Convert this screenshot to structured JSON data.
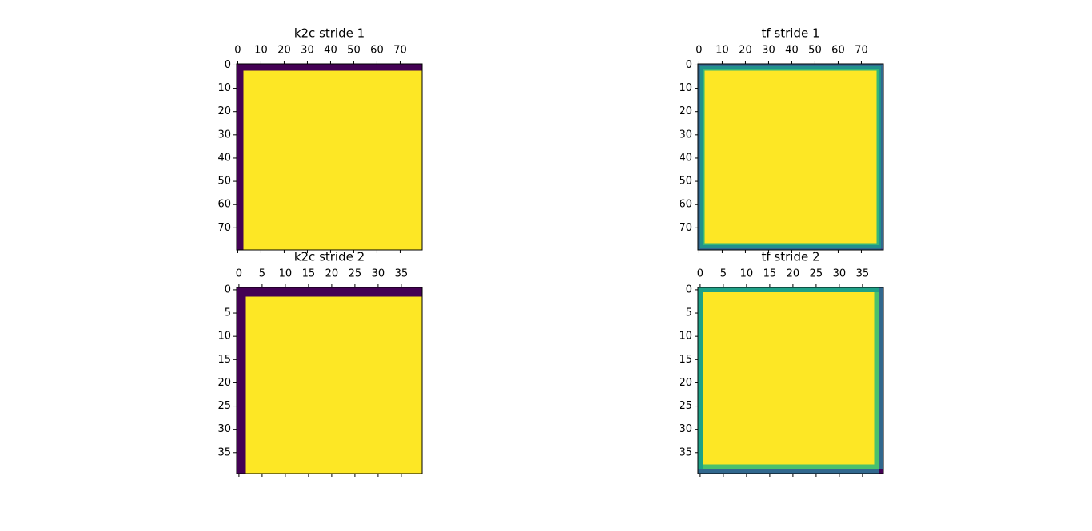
{
  "chart_data": [
    {
      "type": "image",
      "title": "k2c stride 1",
      "xlim": [
        -0.5,
        79.5
      ],
      "ylim": [
        79.5,
        -0.5
      ],
      "xticks": [
        0,
        10,
        20,
        30,
        40,
        50,
        60,
        70
      ],
      "yticks": [
        0,
        10,
        20,
        30,
        40,
        50,
        60,
        70
      ],
      "regions": [
        {
          "x": [
            -0.5,
            79.5
          ],
          "y": [
            -0.5,
            79.5
          ],
          "color": "#fde725"
        },
        {
          "x": [
            -0.5,
            79.5
          ],
          "y": [
            -0.5,
            2.5
          ],
          "color": "#440154"
        },
        {
          "x": [
            -0.5,
            2.5
          ],
          "y": [
            -0.5,
            79.5
          ],
          "color": "#440154"
        }
      ]
    },
    {
      "type": "image",
      "title": "tf stride 1",
      "xlim": [
        -0.5,
        79.5
      ],
      "ylim": [
        79.5,
        -0.5
      ],
      "xticks": [
        0,
        10,
        20,
        30,
        40,
        50,
        60,
        70
      ],
      "yticks": [
        0,
        10,
        20,
        30,
        40,
        50,
        60,
        70
      ],
      "regions": [
        {
          "x": [
            -0.5,
            79.5
          ],
          "y": [
            -0.5,
            79.5
          ],
          "color": "#31688e"
        },
        {
          "x": [
            0.5,
            78.5
          ],
          "y": [
            0.5,
            78.5
          ],
          "color": "#21918c"
        },
        {
          "x": [
            1.5,
            77.5
          ],
          "y": [
            1.5,
            77.5
          ],
          "color": "#35b779"
        },
        {
          "x": [
            2.5,
            76.5
          ],
          "y": [
            2.5,
            76.5
          ],
          "color": "#fde725"
        },
        {
          "x": [
            78.5,
            79.5
          ],
          "y": [
            78.5,
            79.5
          ],
          "color": "#3e4989"
        }
      ]
    },
    {
      "type": "image",
      "title": "k2c stride 2",
      "xlim": [
        -0.5,
        39.5
      ],
      "ylim": [
        39.5,
        -0.5
      ],
      "xticks": [
        0,
        5,
        10,
        15,
        20,
        25,
        30,
        35
      ],
      "yticks": [
        0,
        5,
        10,
        15,
        20,
        25,
        30,
        35
      ],
      "regions": [
        {
          "x": [
            -0.5,
            39.5
          ],
          "y": [
            -0.5,
            39.5
          ],
          "color": "#fde725"
        },
        {
          "x": [
            -0.5,
            39.5
          ],
          "y": [
            -0.5,
            1.5
          ],
          "color": "#440154"
        },
        {
          "x": [
            -0.5,
            1.5
          ],
          "y": [
            -0.5,
            39.5
          ],
          "color": "#440154"
        }
      ]
    },
    {
      "type": "image",
      "title": "tf stride 2",
      "xlim": [
        -0.5,
        39.5
      ],
      "ylim": [
        39.5,
        -0.5
      ],
      "xticks": [
        0,
        5,
        10,
        15,
        20,
        25,
        30,
        35
      ],
      "yticks": [
        0,
        5,
        10,
        15,
        20,
        25,
        30,
        35
      ],
      "regions": [
        {
          "x": [
            -0.5,
            39.5
          ],
          "y": [
            -0.5,
            39.5
          ],
          "color": "#31688e"
        },
        {
          "x": [
            -0.5,
            38.5
          ],
          "y": [
            -0.5,
            38.5
          ],
          "color": "#1fa187"
        },
        {
          "x": [
            0.5,
            38.5
          ],
          "y": [
            0.5,
            38.5
          ],
          "color": "#4ac16d"
        },
        {
          "x": [
            0.5,
            37.5
          ],
          "y": [
            0.5,
            37.5
          ],
          "color": "#fde725"
        },
        {
          "x": [
            38.5,
            39.5
          ],
          "y": [
            38.5,
            39.5
          ],
          "color": "#440154"
        }
      ]
    }
  ]
}
